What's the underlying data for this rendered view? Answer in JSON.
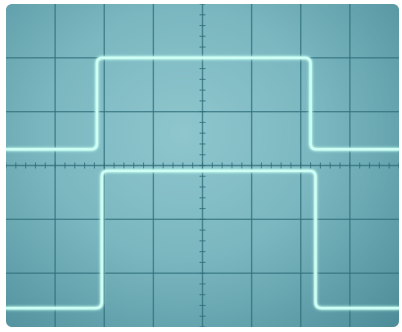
{
  "scope": {
    "screen_color": "#7bb7c0",
    "grid_color": "#2f6f7b",
    "trace_color": "#cffff4",
    "trace_glow": "#8ff5e0",
    "divisions_x": 8,
    "divisions_y": 6,
    "minor_ticks_per_division": 5
  },
  "traces": [
    {
      "name": "upper-trace",
      "waveform": "rectangular-pulse",
      "baseline_level_div": 3.3,
      "high_level_div": 5.0,
      "rise_at_div": 1.85,
      "fall_at_div": 6.2,
      "rounded_edges": true
    },
    {
      "name": "lower-trace",
      "waveform": "rectangular-pulse",
      "baseline_level_div": 0.35,
      "high_level_div": 2.9,
      "rise_at_div": 1.95,
      "fall_at_div": 6.3,
      "rounded_edges": true
    }
  ]
}
